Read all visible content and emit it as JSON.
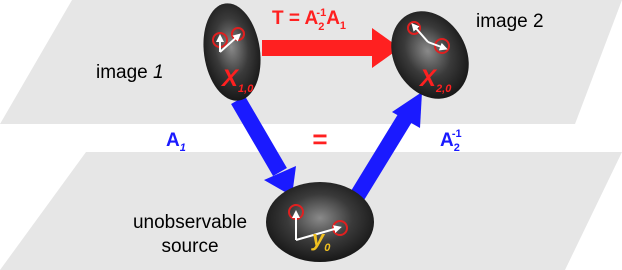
{
  "top_plane": {
    "image_1": {
      "text": "image",
      "number": "1"
    },
    "image_2": {
      "text": "image 2"
    },
    "transform": {
      "lhs": "T = A",
      "sub_2": "2",
      "sup": "-1",
      "a": "A",
      "sub_1": "1"
    },
    "x_1": {
      "letter": "X",
      "sub": "1,0"
    },
    "x_2": {
      "letter": "X",
      "sub": "2,0"
    }
  },
  "middle": {
    "a1": {
      "letter": "A",
      "sub": "1"
    },
    "equals": "=",
    "a2": {
      "letter": "A",
      "sub": "2",
      "sup": "-1"
    }
  },
  "bottom_plane": {
    "source_line_1": "unobservable",
    "source_line_2": "source",
    "y": {
      "letter": "y",
      "sub": "0"
    }
  }
}
